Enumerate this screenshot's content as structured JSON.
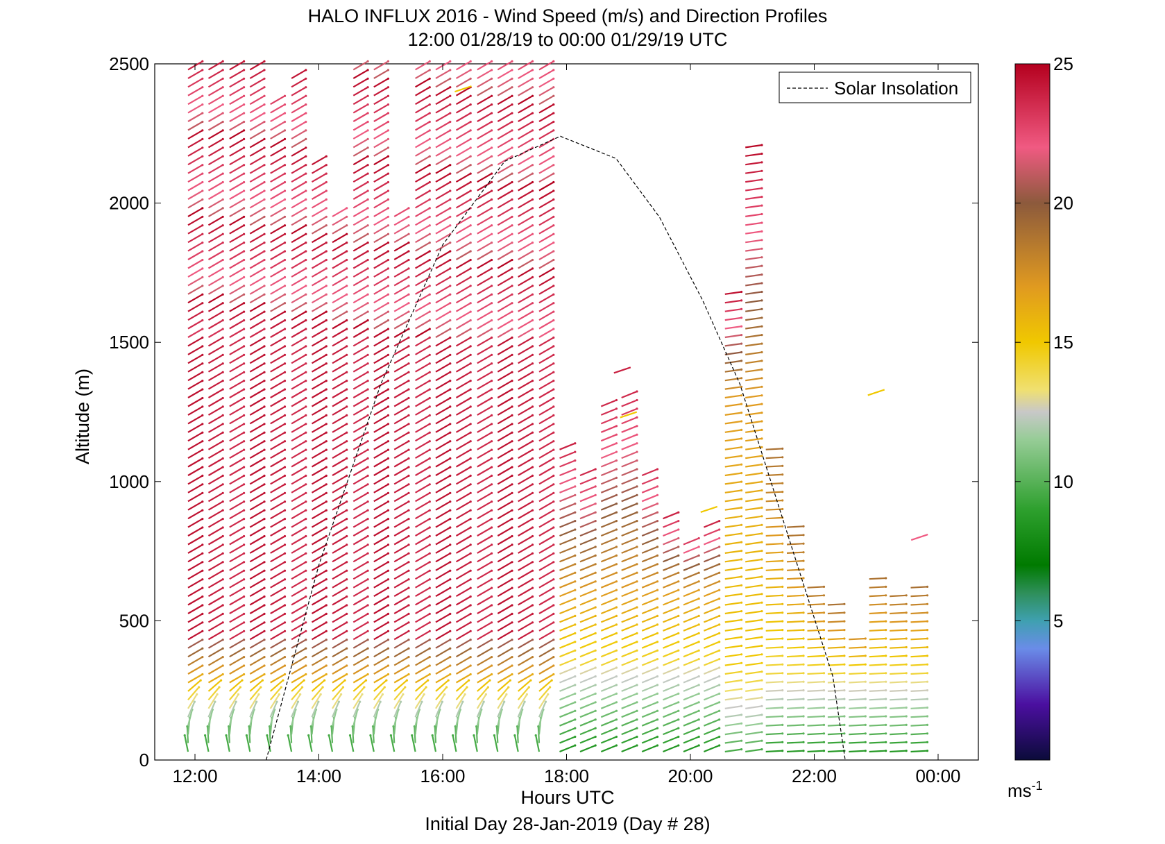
{
  "chart_data": {
    "type": "wind-barb-profile",
    "title": "HALO INFLUX 2016 - Wind Speed (m/s) and Direction Profiles",
    "subtitle": "12:00 01/28/19 to 00:00 01/29/19  UTC",
    "xlabel": "Hours UTC",
    "xlabel2": "Initial Day 28-Jan-2019 (Day # 28)",
    "ylabel": "Altitude (m)",
    "x_ticks": [
      "12:00",
      "14:00",
      "16:00",
      "18:00",
      "20:00",
      "22:00",
      "00:00"
    ],
    "x_tick_hours": [
      12,
      14,
      16,
      18,
      20,
      22,
      24
    ],
    "xlim": [
      11.35,
      24.65
    ],
    "y_ticks": [
      "0",
      "500",
      "1000",
      "1500",
      "2000",
      "2500"
    ],
    "y_tick_values": [
      0,
      500,
      1000,
      1500,
      2000,
      2500
    ],
    "ylim": [
      0,
      2500
    ],
    "legend": {
      "label": "Solar Insolation",
      "position": "top-right",
      "style": "dashed"
    },
    "colorbar": {
      "ticks": [
        "5",
        "10",
        "15",
        "20",
        "25"
      ],
      "tick_values": [
        5,
        10,
        15,
        20,
        25
      ],
      "range": [
        0,
        25
      ],
      "unit": "ms",
      "unit_exp": "-1",
      "stops": [
        {
          "v": 0,
          "c": "#0b0b3a"
        },
        {
          "v": 2,
          "c": "#4b0fa0"
        },
        {
          "v": 4,
          "c": "#6a8ce8"
        },
        {
          "v": 5,
          "c": "#3fa0b0"
        },
        {
          "v": 6,
          "c": "#2e8f5a"
        },
        {
          "v": 7,
          "c": "#007a00"
        },
        {
          "v": 9,
          "c": "#2ea02e"
        },
        {
          "v": 11.5,
          "c": "#96cc96"
        },
        {
          "v": 12.5,
          "c": "#c8c8c8"
        },
        {
          "v": 13.3,
          "c": "#f0e070"
        },
        {
          "v": 15,
          "c": "#f0c800"
        },
        {
          "v": 17,
          "c": "#e09a20"
        },
        {
          "v": 20,
          "c": "#8c5a3c"
        },
        {
          "v": 22,
          "c": "#f05a82"
        },
        {
          "v": 25,
          "c": "#b4001e"
        }
      ]
    },
    "solar_insolation_curve": [
      [
        13.15,
        0
      ],
      [
        14.0,
        700
      ],
      [
        15.0,
        1350
      ],
      [
        16.0,
        1850
      ],
      [
        17.0,
        2150
      ],
      [
        17.9,
        2240
      ],
      [
        18.8,
        2160
      ],
      [
        19.5,
        1950
      ],
      [
        20.2,
        1650
      ],
      [
        20.8,
        1350
      ],
      [
        21.3,
        1000
      ],
      [
        21.8,
        650
      ],
      [
        22.3,
        300
      ],
      [
        22.5,
        0
      ]
    ],
    "profiles": [
      {
        "t": 12.0,
        "top": 2500,
        "dir": 245
      },
      {
        "t": 12.33,
        "top": 2500,
        "dir": 245
      },
      {
        "t": 12.67,
        "top": 2500,
        "dir": 245
      },
      {
        "t": 13.0,
        "top": 2500,
        "dir": 245
      },
      {
        "t": 13.33,
        "top": 2360,
        "dir": 245
      },
      {
        "t": 13.67,
        "top": 2460,
        "dir": 245
      },
      {
        "t": 14.0,
        "top": 2160,
        "dir": 245
      },
      {
        "t": 14.33,
        "top": 1960,
        "dir": 245
      },
      {
        "t": 14.67,
        "top": 2500,
        "dir": 245
      },
      {
        "t": 15.0,
        "top": 2500,
        "dir": 245
      },
      {
        "t": 15.33,
        "top": 1960,
        "dir": 245
      },
      {
        "t": 15.67,
        "top": 2500,
        "dir": 245
      },
      {
        "t": 16.0,
        "top": 2500,
        "dir": 245
      },
      {
        "t": 16.33,
        "top": 2500,
        "dir": 245
      },
      {
        "t": 16.67,
        "top": 2500,
        "dir": 245
      },
      {
        "t": 17.0,
        "top": 2500,
        "dir": 245
      },
      {
        "t": 17.33,
        "top": 2500,
        "dir": 245
      },
      {
        "t": 17.67,
        "top": 2500,
        "dir": 245
      },
      {
        "t": 18.0,
        "top": 1120,
        "dir": 250
      },
      {
        "t": 18.33,
        "top": 1040,
        "dir": 250
      },
      {
        "t": 18.67,
        "top": 1290,
        "dir": 250
      },
      {
        "t": 19.0,
        "top": 1330,
        "dir": 252
      },
      {
        "t": 19.33,
        "top": 1050,
        "dir": 255
      },
      {
        "t": 19.67,
        "top": 870,
        "dir": 258
      },
      {
        "t": 20.0,
        "top": 800,
        "dir": 260
      },
      {
        "t": 20.33,
        "top": 840,
        "dir": 262
      },
      {
        "t": 20.67,
        "top": 1700,
        "dir": 262
      },
      {
        "t": 21.0,
        "top": 2230,
        "dir": 262
      },
      {
        "t": 21.33,
        "top": 1130,
        "dir": 265
      },
      {
        "t": 21.67,
        "top": 840,
        "dir": 268
      },
      {
        "t": 22.0,
        "top": 640,
        "dir": 272
      },
      {
        "t": 22.33,
        "top": 560,
        "dir": 272
      },
      {
        "t": 22.67,
        "top": 450,
        "dir": 272
      },
      {
        "t": 23.0,
        "top": 660,
        "dir": 272
      },
      {
        "t": 23.33,
        "top": 610,
        "dir": 270
      },
      {
        "t": 23.67,
        "top": 620,
        "dir": 270
      }
    ],
    "isolated_vectors": [
      {
        "t": 16.33,
        "alt": 2400,
        "speed": 15
      },
      {
        "t": 18.9,
        "alt": 1390,
        "speed": 24
      },
      {
        "t": 19.0,
        "alt": 1230,
        "speed": 15
      },
      {
        "t": 20.3,
        "alt": 890,
        "speed": 15
      },
      {
        "t": 23.0,
        "alt": 1310,
        "speed": 15
      },
      {
        "t": 23.7,
        "alt": 790,
        "speed": 22
      }
    ]
  }
}
